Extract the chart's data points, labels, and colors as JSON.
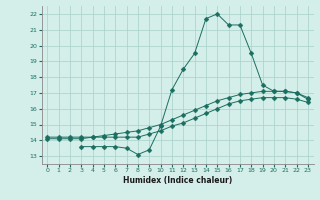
{
  "title": "",
  "xlabel": "Humidex (Indice chaleur)",
  "ylabel": "",
  "xlim": [
    -0.5,
    23.5
  ],
  "ylim": [
    12.5,
    22.5
  ],
  "xticks": [
    0,
    1,
    2,
    3,
    4,
    5,
    6,
    7,
    8,
    9,
    10,
    11,
    12,
    13,
    14,
    15,
    16,
    17,
    18,
    19,
    20,
    21,
    22,
    23
  ],
  "yticks": [
    13,
    14,
    15,
    16,
    17,
    18,
    19,
    20,
    21,
    22
  ],
  "background_color": "#d4eeea",
  "grid_color": "#aed4ce",
  "line_color": "#1a6e60",
  "line1_x": [
    0,
    1,
    2,
    3,
    4,
    5,
    6,
    7,
    8,
    9,
    10,
    11,
    12,
    13,
    14,
    15,
    16,
    17,
    18,
    19,
    20,
    21,
    22,
    23
  ],
  "line1_y": [
    14.2,
    14.2,
    14.2,
    14.2,
    14.2,
    14.3,
    14.4,
    14.5,
    14.6,
    14.8,
    15.0,
    15.3,
    15.6,
    15.9,
    16.2,
    16.5,
    16.7,
    16.9,
    17.0,
    17.1,
    17.1,
    17.1,
    17.0,
    16.7
  ],
  "line2_x": [
    0,
    1,
    2,
    3,
    4,
    5,
    6,
    7,
    8,
    9,
    10,
    11,
    12,
    13,
    14,
    15,
    16,
    17,
    18,
    19,
    20,
    21,
    22,
    23
  ],
  "line2_y": [
    14.1,
    14.1,
    14.1,
    14.1,
    14.2,
    14.2,
    14.2,
    14.2,
    14.2,
    14.4,
    14.6,
    14.9,
    15.1,
    15.4,
    15.7,
    16.0,
    16.3,
    16.5,
    16.6,
    16.7,
    16.7,
    16.7,
    16.6,
    16.4
  ],
  "line3_x": [
    3,
    4,
    5,
    6,
    7,
    8,
    9,
    10,
    11,
    12,
    13,
    14,
    15,
    16,
    17,
    18,
    19,
    20,
    21,
    22,
    23
  ],
  "line3_y": [
    13.6,
    13.6,
    13.6,
    13.6,
    13.5,
    13.1,
    13.4,
    14.9,
    17.2,
    18.5,
    19.5,
    21.7,
    22.0,
    21.3,
    21.3,
    19.5,
    17.5,
    17.1,
    17.1,
    17.0,
    16.6
  ],
  "markersize": 2.5
}
